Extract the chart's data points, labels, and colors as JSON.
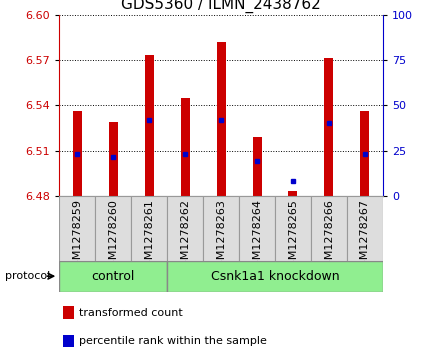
{
  "title": "GDS5360 / ILMN_2438762",
  "samples": [
    "GSM1278259",
    "GSM1278260",
    "GSM1278261",
    "GSM1278262",
    "GSM1278263",
    "GSM1278264",
    "GSM1278265",
    "GSM1278266",
    "GSM1278267"
  ],
  "bar_tops": [
    6.536,
    6.529,
    6.573,
    6.545,
    6.582,
    6.519,
    6.483,
    6.571,
    6.536
  ],
  "bar_bottom": 6.48,
  "percentile_values": [
    6.508,
    6.506,
    6.53,
    6.508,
    6.53,
    6.503,
    6.49,
    6.528,
    6.508
  ],
  "ylim_left": [
    6.48,
    6.6
  ],
  "ylim_right": [
    0,
    100
  ],
  "yticks_left": [
    6.48,
    6.51,
    6.54,
    6.57,
    6.6
  ],
  "yticks_right": [
    0,
    25,
    50,
    75,
    100
  ],
  "bar_color": "#cc0000",
  "dot_color": "#0000cc",
  "bg_color": "#ffffff",
  "cell_bg": "#dddddd",
  "plot_bg": "#ffffff",
  "left_axis_color": "#cc0000",
  "right_axis_color": "#0000cc",
  "group_color": "#90EE90",
  "control_n": 3,
  "knockdown_n": 6,
  "control_label": "control",
  "knockdown_label": "Csnk1a1 knockdown",
  "protocol_label": "protocol",
  "title_fontsize": 11,
  "tick_fontsize": 8,
  "label_fontsize": 9,
  "bar_width": 0.25
}
